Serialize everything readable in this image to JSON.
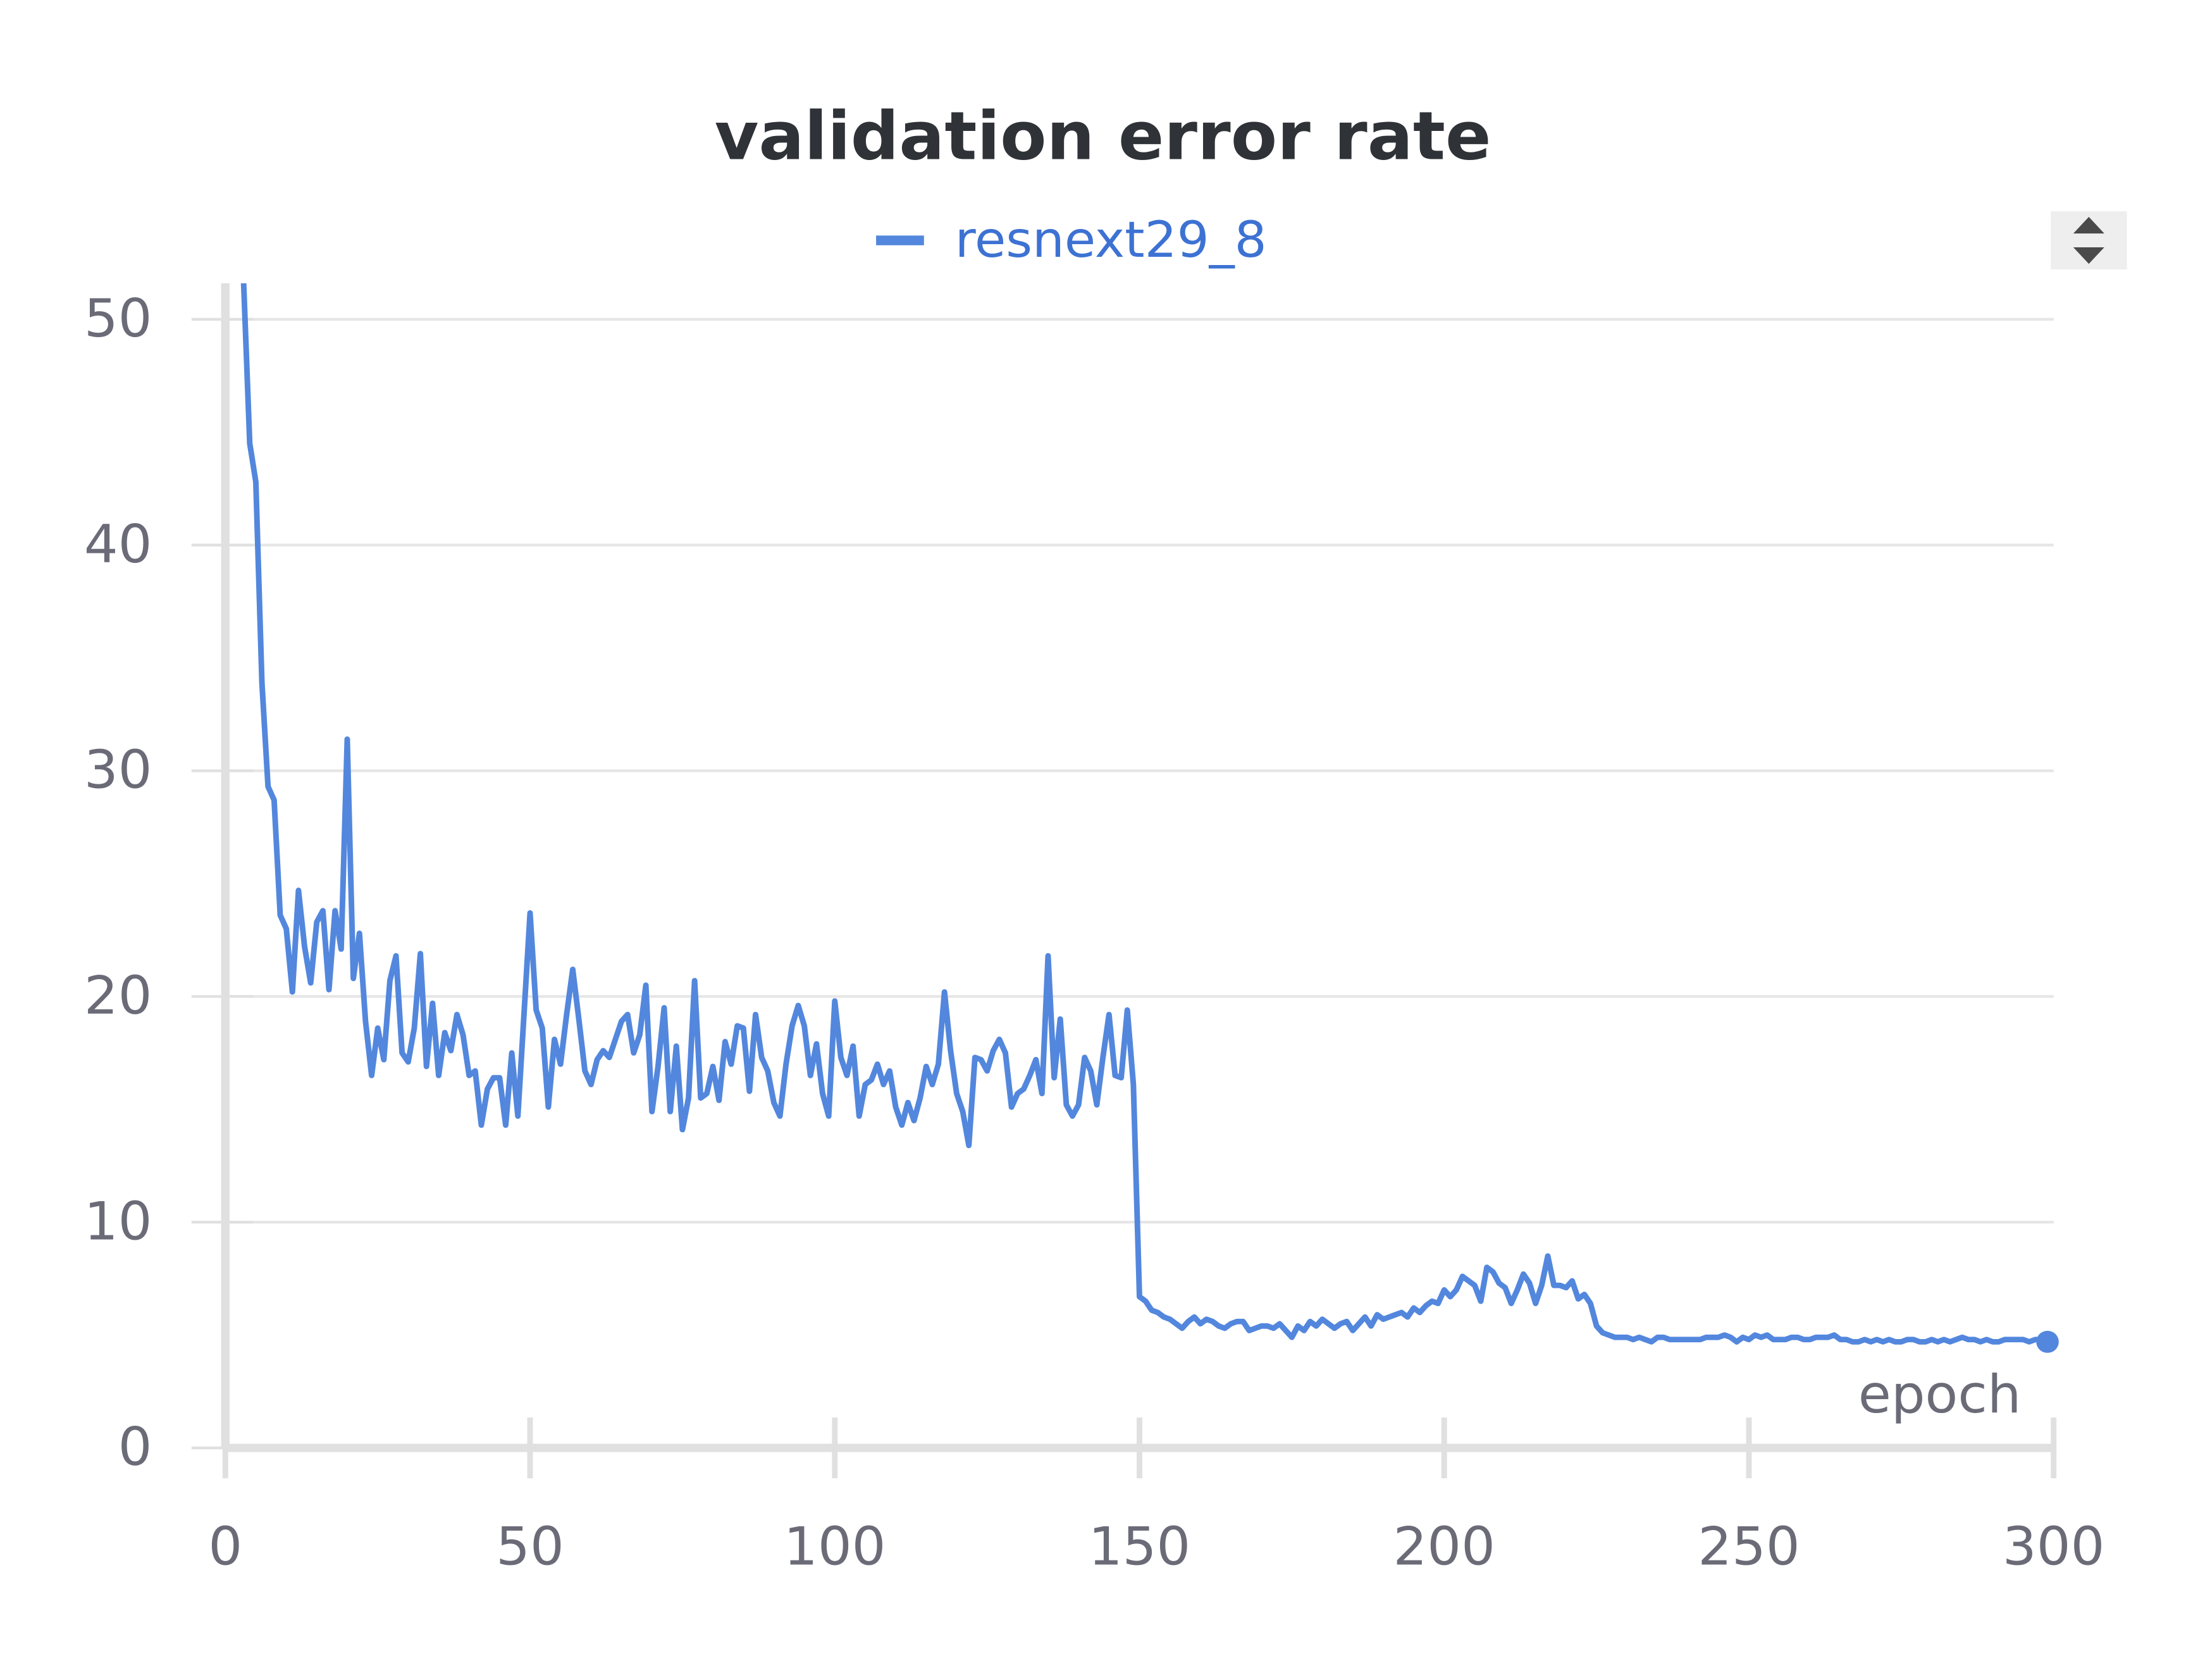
{
  "chart_data": {
    "type": "line",
    "title": "validation error rate",
    "xlabel": "epoch",
    "x": [
      3,
      4,
      5,
      6,
      7,
      8,
      9,
      10,
      11,
      12,
      13,
      14,
      15,
      16,
      17,
      18,
      19,
      20,
      21,
      22,
      23,
      24,
      25,
      26,
      27,
      28,
      29,
      30,
      31,
      32,
      33,
      34,
      35,
      36,
      37,
      38,
      39,
      40,
      41,
      42,
      43,
      44,
      45,
      46,
      47,
      48,
      49,
      50,
      51,
      52,
      53,
      54,
      55,
      56,
      57,
      58,
      59,
      60,
      61,
      62,
      63,
      64,
      65,
      66,
      67,
      68,
      69,
      70,
      71,
      72,
      73,
      74,
      75,
      76,
      77,
      78,
      79,
      80,
      81,
      82,
      83,
      84,
      85,
      86,
      87,
      88,
      89,
      90,
      91,
      92,
      93,
      94,
      95,
      96,
      97,
      98,
      99,
      100,
      101,
      102,
      103,
      104,
      105,
      106,
      107,
      108,
      109,
      110,
      111,
      112,
      113,
      114,
      115,
      116,
      117,
      118,
      119,
      120,
      121,
      122,
      123,
      124,
      125,
      126,
      127,
      128,
      129,
      130,
      131,
      132,
      133,
      134,
      135,
      136,
      137,
      138,
      139,
      140,
      141,
      142,
      143,
      144,
      145,
      146,
      147,
      148,
      149,
      150,
      151,
      152,
      153,
      154,
      155,
      156,
      157,
      158,
      159,
      160,
      161,
      162,
      163,
      164,
      165,
      166,
      167,
      168,
      169,
      170,
      171,
      172,
      173,
      174,
      175,
      176,
      177,
      178,
      179,
      180,
      181,
      182,
      183,
      184,
      185,
      186,
      187,
      188,
      189,
      190,
      191,
      192,
      193,
      194,
      195,
      196,
      197,
      198,
      199,
      200,
      201,
      202,
      203,
      204,
      205,
      206,
      207,
      208,
      209,
      210,
      211,
      212,
      213,
      214,
      215,
      216,
      217,
      218,
      219,
      220,
      221,
      222,
      223,
      224,
      225,
      226,
      227,
      228,
      229,
      230,
      231,
      232,
      233,
      234,
      235,
      236,
      237,
      238,
      239,
      240,
      241,
      242,
      243,
      244,
      245,
      246,
      247,
      248,
      249,
      250,
      251,
      252,
      253,
      254,
      255,
      256,
      257,
      258,
      259,
      260,
      261,
      262,
      263,
      264,
      265,
      266,
      267,
      268,
      269,
      270,
      271,
      272,
      273,
      274,
      275,
      276,
      277,
      278,
      279,
      280,
      281,
      282,
      283,
      284,
      285,
      286,
      287,
      288,
      289,
      290,
      291,
      292,
      293,
      294,
      295,
      296,
      297,
      298,
      299
    ],
    "series": [
      {
        "name": "resnext29_8",
        "color": "#5387dd",
        "values": [
          51.6,
          44.5,
          42.8,
          33.9,
          29.3,
          28.7,
          23.6,
          23,
          20.2,
          24.7,
          22.2,
          20.6,
          23.3,
          23.8,
          20.3,
          23.8,
          22.1,
          31.4,
          20.8,
          22.8,
          18.9,
          16.5,
          18.6,
          17.2,
          20.7,
          21.8,
          17.5,
          17.1,
          18.6,
          21.9,
          16.9,
          19.7,
          16.5,
          18.4,
          17.6,
          19.2,
          18.3,
          16.5,
          16.7,
          14.3,
          15.9,
          16.4,
          16.4,
          14.3,
          17.5,
          14.7,
          19.2,
          23.7,
          19.4,
          18.6,
          15.1,
          18.1,
          17,
          19.2,
          21.2,
          19,
          16.7,
          16.1,
          17.2,
          17.6,
          17.3,
          18.1,
          18.9,
          19.2,
          17.5,
          18.3,
          20.5,
          14.9,
          16.9,
          19.5,
          14.9,
          17.8,
          14.1,
          15.5,
          20.7,
          15.5,
          15.7,
          16.9,
          15.4,
          18,
          17,
          18.7,
          18.6,
          15.8,
          19.2,
          17.3,
          16.7,
          15.3,
          14.7,
          17,
          18.7,
          19.6,
          18.7,
          16.5,
          17.9,
          15.7,
          14.7,
          19.8,
          17.3,
          16.5,
          17.8,
          14.7,
          16.1,
          16.3,
          17,
          16.1,
          16.7,
          15.1,
          14.3,
          15.3,
          14.5,
          15.5,
          16.9,
          16.1,
          17,
          20.2,
          17.6,
          15.7,
          14.9,
          13.4,
          17.3,
          17.2,
          16.7,
          17.6,
          18.1,
          17.5,
          15.1,
          15.7,
          15.9,
          16.5,
          17.2,
          15.7,
          21.8,
          16.4,
          19,
          15.2,
          14.7,
          15.2,
          17.3,
          16.7,
          15.2,
          17.3,
          19.2,
          16.5,
          16.4,
          19.4,
          16.1,
          6.7,
          6.5,
          6.1,
          6.0,
          5.8,
          5.7,
          5.5,
          5.3,
          5.6,
          5.8,
          5.5,
          5.7,
          5.6,
          5.4,
          5.3,
          5.5,
          5.6,
          5.6,
          5.2,
          5.3,
          5.4,
          5.4,
          5.3,
          5.5,
          5.2,
          4.9,
          5.4,
          5.2,
          5.6,
          5.4,
          5.7,
          5.5,
          5.3,
          5.5,
          5.6,
          5.2,
          5.5,
          5.8,
          5.4,
          5.9,
          5.7,
          5.8,
          5.9,
          6.0,
          5.8,
          6.2,
          6.0,
          6.3,
          6.5,
          6.4,
          7.0,
          6.7,
          7.0,
          7.6,
          7.4,
          7.2,
          6.5,
          8.0,
          7.8,
          7.3,
          7.1,
          6.4,
          7.0,
          7.7,
          7.3,
          6.4,
          7.2,
          8.5,
          7.2,
          7.2,
          7.1,
          7.4,
          6.6,
          6.8,
          6.4,
          5.4,
          5.1,
          5.0,
          4.9,
          4.9,
          4.9,
          4.8,
          4.9,
          4.8,
          4.7,
          4.9,
          4.9,
          4.8,
          4.8,
          4.8,
          4.8,
          4.8,
          4.8,
          4.9,
          4.9,
          4.9,
          5.0,
          4.9,
          4.7,
          4.9,
          4.8,
          5.0,
          4.9,
          5.0,
          4.8,
          4.8,
          4.8,
          4.9,
          4.9,
          4.8,
          4.8,
          4.9,
          4.9,
          4.9,
          5.0,
          4.8,
          4.8,
          4.7,
          4.7,
          4.8,
          4.7,
          4.8,
          4.7,
          4.8,
          4.7,
          4.7,
          4.8,
          4.8,
          4.7,
          4.7,
          4.8,
          4.7,
          4.8,
          4.7,
          4.8,
          4.9,
          4.8,
          4.8,
          4.7,
          4.8,
          4.7,
          4.7,
          4.8,
          4.8,
          4.8,
          4.8,
          4.7,
          4.8,
          4.8,
          4.7
        ]
      }
    ],
    "xlim": [
      0,
      300
    ],
    "xticks": [
      0,
      50,
      100,
      150,
      200,
      250,
      300
    ],
    "ylim": [
      0,
      51.6
    ],
    "yticks": [
      0,
      10,
      20,
      30,
      40,
      50
    ],
    "grid": true
  }
}
